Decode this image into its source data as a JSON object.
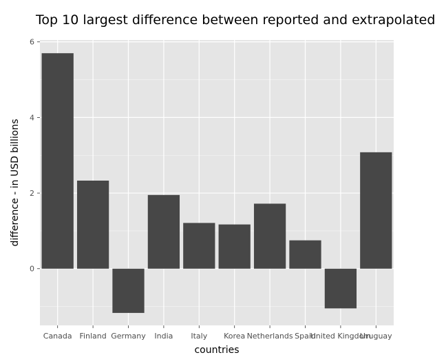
{
  "chart_data": {
    "type": "bar",
    "title": "Top 10 largest difference between reported and extrapolated",
    "xlabel": "countries",
    "ylabel": "difference - in USD billions",
    "categories": [
      "Canada",
      "Finland",
      "Germany",
      "India",
      "Italy",
      "Korea",
      "Netherlands",
      "Spain",
      "United Kingdom",
      "Uruguay"
    ],
    "values": [
      5.7,
      2.33,
      -1.17,
      1.95,
      1.21,
      1.17,
      1.72,
      0.75,
      -1.05,
      3.08
    ],
    "ylim": [
      -1.5,
      6.05
    ],
    "yticks": [
      "0",
      "2",
      "4",
      "6"
    ],
    "grid": true,
    "bar_color": "#474747",
    "panel_color": "#e5e5e5",
    "grid_color": "#ffffff"
  }
}
